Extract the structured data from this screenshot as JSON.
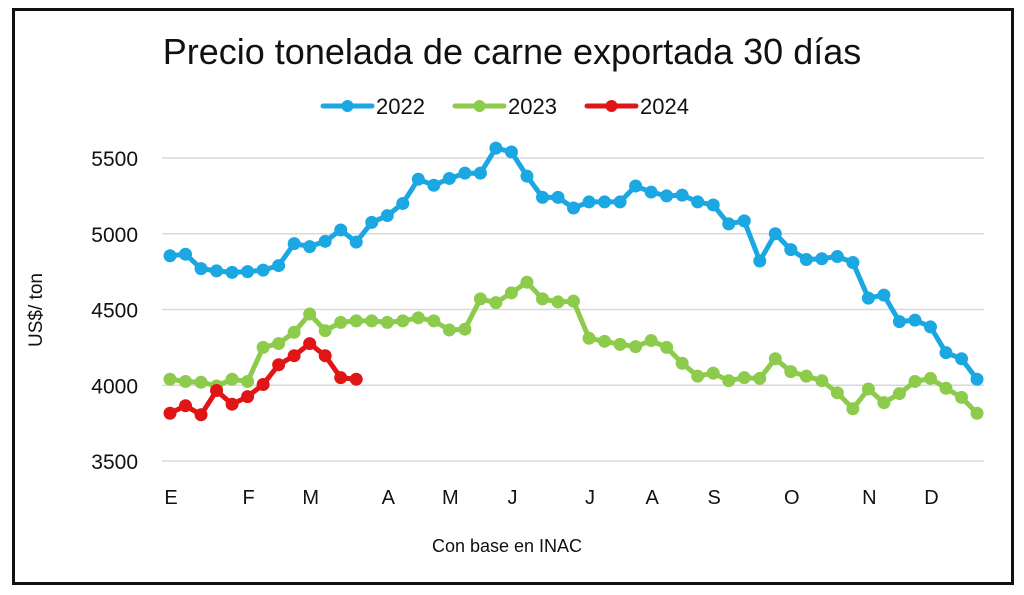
{
  "chart_data": {
    "type": "line",
    "title": "Precio tonelada de carne exportada 30 días",
    "xlabel": "Con base en INAC",
    "ylabel": "US$/ ton",
    "ylim": [
      3500,
      5500
    ],
    "yticks": [
      5500,
      5000,
      4500,
      4000,
      3500
    ],
    "ytick_labels": [
      "5500",
      "5000",
      "4500",
      "4000",
      "3500"
    ],
    "x_tick_labels": [
      "E",
      "F",
      "M",
      "A",
      "M",
      "J",
      "J",
      "A",
      "S",
      "O",
      "N",
      "D"
    ],
    "x_tick_weeks": [
      0,
      5,
      9,
      14,
      18,
      22,
      27,
      31,
      35,
      40,
      45,
      49
    ],
    "x_unit": "week index (0 = first week of January)",
    "grid": true,
    "legend_position": "top-center",
    "series": [
      {
        "name": "2022",
        "color": "#1AA7E2",
        "values": [
          4855,
          4865,
          4770,
          4755,
          4745,
          4750,
          4760,
          4790,
          4935,
          4915,
          4950,
          5025,
          4945,
          5075,
          5120,
          5200,
          5360,
          5320,
          5365,
          5400,
          5400,
          5565,
          5540,
          5380,
          5240,
          5240,
          5170,
          5210,
          5210,
          5210,
          5315,
          5275,
          5250,
          5255,
          5210,
          5190,
          5065,
          5085,
          4820,
          5000,
          4895,
          4830,
          4835,
          4850,
          4810,
          4575,
          4595,
          4420,
          4430,
          4385,
          4215,
          4175,
          4040
        ]
      },
      {
        "name": "2023",
        "color": "#8CCB4B",
        "values": [
          4040,
          4025,
          4020,
          3995,
          4040,
          4025,
          4250,
          4275,
          4350,
          4470,
          4360,
          4415,
          4425,
          4425,
          4415,
          4425,
          4445,
          4425,
          4365,
          4370,
          4570,
          4545,
          4610,
          4680,
          4570,
          4550,
          4555,
          4310,
          4290,
          4270,
          4255,
          4295,
          4250,
          4145,
          4060,
          4080,
          4030,
          4050,
          4045,
          4175,
          4090,
          4060,
          4030,
          3950,
          3845,
          3975,
          3885,
          3945,
          4025,
          4045,
          3980,
          3920,
          3815
        ]
      },
      {
        "name": "2024",
        "color": "#E01515",
        "values": [
          3815,
          3865,
          3805,
          3965,
          3875,
          3925,
          4005,
          4135,
          4195,
          4275,
          4195,
          4050,
          4040
        ]
      }
    ]
  }
}
